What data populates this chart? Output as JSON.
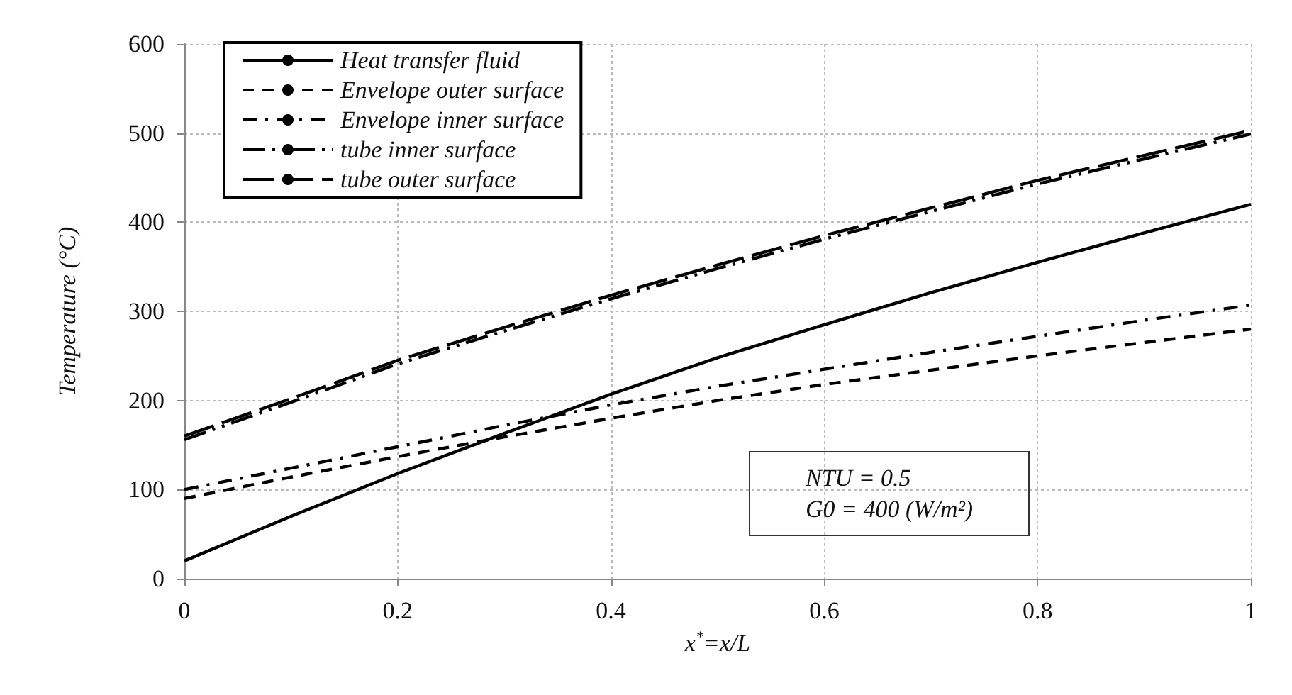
{
  "chart_data": {
    "type": "line",
    "xlabel": "x$^{*}$=x/L",
    "ylabel": "Temperature (°C)",
    "x": [
      0,
      0.1,
      0.2,
      0.3,
      0.4,
      0.5,
      0.6,
      0.7,
      0.8,
      0.9,
      1
    ],
    "series": [
      {
        "name": "Heat transfer fluid",
        "color": "#000000",
        "line_style": "solid",
        "values": [
          20,
          70,
          118,
          163,
          207,
          248,
          285,
          321,
          355,
          388,
          420
        ]
      },
      {
        "name": "Envelope outer surface",
        "color": "#000000",
        "line_style": "dashed",
        "values": [
          90,
          114,
          137,
          159,
          180,
          200,
          218,
          234,
          250,
          265,
          280
        ]
      },
      {
        "name": "Envelope inner surface",
        "color": "#000000",
        "line_style": "dashdot",
        "values": [
          100,
          124,
          148,
          172,
          195,
          216,
          235,
          254,
          272,
          290,
          307
        ]
      },
      {
        "name": "tube inner surface",
        "color": "#000000",
        "line_style": "dashdotdot",
        "values": [
          156,
          198,
          241,
          278,
          314,
          348,
          381,
          412,
          443,
          471,
          499
        ]
      },
      {
        "name": "tube outer surface",
        "color": "#000000",
        "line_style": "longdash",
        "values": [
          160,
          202,
          245,
          282,
          318,
          352,
          385,
          416,
          447,
          475,
          503
        ]
      }
    ],
    "xlim": [
      0,
      1
    ],
    "xticks": [
      0,
      0.2,
      0.4,
      0.6,
      0.8,
      1
    ],
    "ylim": [
      0,
      600
    ],
    "yticks": [
      0,
      100,
      200,
      300,
      400,
      500,
      600
    ],
    "grid": true,
    "legend": "top left",
    "marker": "none",
    "annotations": [
      "NTU = 0.5\nG0 = 400 (W/m²)"
    ]
  }
}
